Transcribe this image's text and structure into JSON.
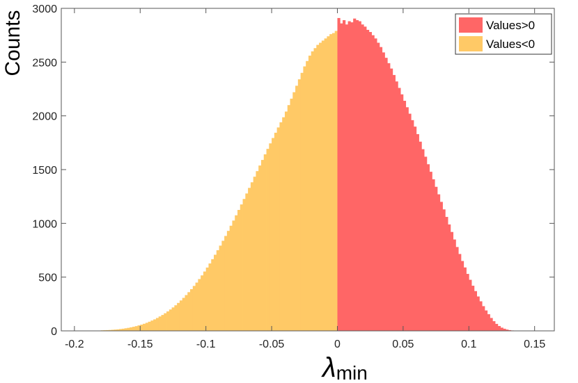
{
  "chart_data": {
    "type": "histogram",
    "xlabel_main": "λ",
    "xlabel_sub": "min",
    "ylabel": "Counts",
    "xlim": [
      -0.21,
      0.165
    ],
    "ylim": [
      0,
      3000
    ],
    "xticks": [
      -0.2,
      -0.15,
      -0.1,
      -0.05,
      0,
      0.05,
      0.1,
      0.15
    ],
    "xtick_labels": [
      "-0.2",
      "-0.15",
      "-0.1",
      "-0.05",
      "0",
      "0.05",
      "0.1",
      "0.15"
    ],
    "yticks": [
      0,
      500,
      1000,
      1500,
      2000,
      2500,
      3000
    ],
    "ytick_labels": [
      "0",
      "500",
      "1000",
      "1500",
      "2000",
      "2500",
      "3000"
    ],
    "grid": false,
    "legend_position": "top-right",
    "bin_width": 0.002,
    "series": [
      {
        "name": "Values<0",
        "color": "#FFC966",
        "bin_start": -0.18,
        "values": [
          5,
          6,
          7,
          8,
          10,
          12,
          14,
          17,
          20,
          24,
          28,
          33,
          38,
          44,
          51,
          58,
          66,
          75,
          85,
          96,
          107,
          120,
          134,
          148,
          164,
          181,
          199,
          218,
          238,
          260,
          283,
          307,
          333,
          360,
          388,
          418,
          449,
          482,
          516,
          552,
          589,
          627,
          667,
          708,
          750,
          793,
          838,
          883,
          930,
          978,
          1026,
          1075,
          1125,
          1176,
          1227,
          1278,
          1330,
          1382,
          1434,
          1486,
          1538,
          1590,
          1642,
          1693,
          1744,
          1794,
          1843,
          1892,
          1940,
          1987,
          2040,
          2100,
          2160,
          2220,
          2280,
          2340,
          2400,
          2460,
          2510,
          2560,
          2600,
          2630,
          2660,
          2680,
          2700,
          2720,
          2740,
          2760,
          2770,
          2790
        ]
      },
      {
        "name": "Values>0",
        "color": "#FF6666",
        "bin_start": 0.0,
        "values": [
          2910,
          2860,
          2890,
          2850,
          2880,
          2870,
          2905,
          2890,
          2880,
          2850,
          2830,
          2800,
          2780,
          2750,
          2720,
          2680,
          2640,
          2590,
          2540,
          2490,
          2440,
          2380,
          2320,
          2260,
          2200,
          2140,
          2080,
          2020,
          1960,
          1900,
          1830,
          1760,
          1690,
          1620,
          1550,
          1480,
          1410,
          1340,
          1270,
          1200,
          1130,
          1060,
          990,
          920,
          850,
          780,
          715,
          650,
          590,
          530,
          475,
          420,
          370,
          320,
          275,
          230,
          190,
          155,
          120,
          90,
          65,
          45,
          30,
          20,
          12,
          7,
          4,
          2
        ]
      }
    ]
  }
}
